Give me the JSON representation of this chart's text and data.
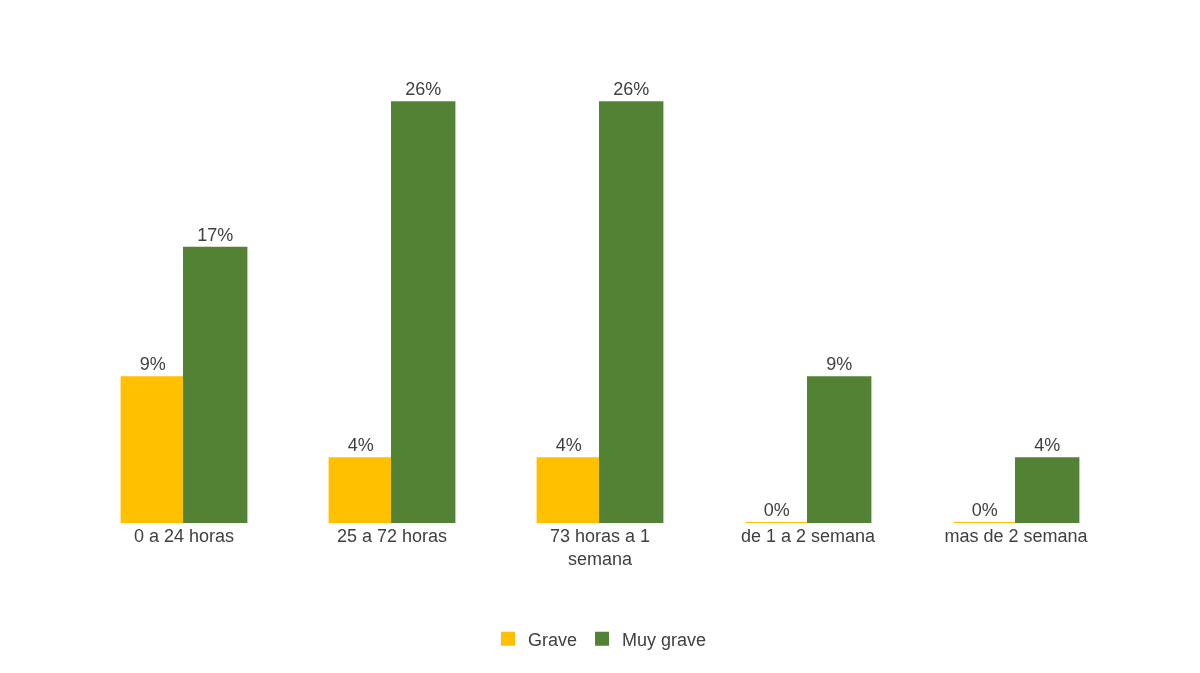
{
  "chart_data": {
    "type": "bar",
    "categories": [
      "0 a 24 horas",
      "25 a 72 horas",
      "73 horas a 1 semana",
      "de 1 a 2 semana",
      "mas de 2 semana"
    ],
    "series": [
      {
        "name": "Grave",
        "color": "#ffc000",
        "values": [
          9,
          4,
          4,
          0,
          0
        ],
        "value_labels": [
          "9%",
          "4%",
          "4%",
          "0%",
          "0%"
        ]
      },
      {
        "name": "Muy grave",
        "color": "#548235",
        "values": [
          17,
          26,
          26,
          9,
          4
        ],
        "value_labels": [
          "17%",
          "26%",
          "26%",
          "9%",
          "4%"
        ]
      }
    ],
    "legend": "bottom"
  }
}
